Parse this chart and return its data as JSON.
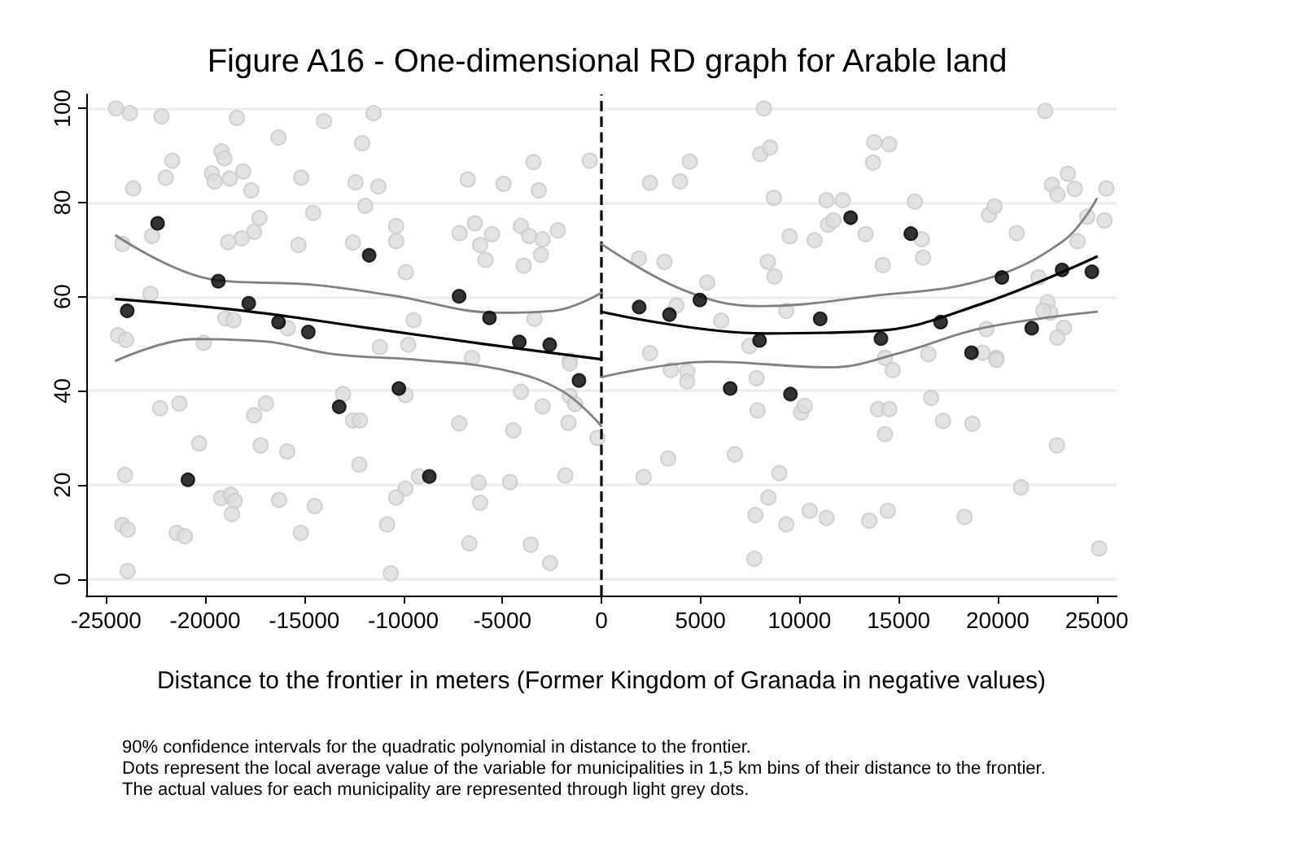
{
  "chart_data": {
    "type": "scatter",
    "title": "Figure A16 - One-dimensional RD graph for Arable land",
    "xlabel": "Distance to the frontier in meters (Former Kingdom of Granada in negative values)",
    "annotations": [
      "90% confidence intervals for the quadratic polynomial in distance to the frontier.",
      "Dots represent the local average value of the variable for municipalities in 1,5 km bins of their distance to the frontier.",
      "The actual values for each municipality are represented through light grey dots."
    ],
    "xlim": [
      -26000,
      26000
    ],
    "ylim": [
      -3.5,
      103
    ],
    "xticks": [
      -25000,
      -20000,
      -15000,
      -10000,
      -5000,
      0,
      5000,
      10000,
      15000,
      20000,
      25000
    ],
    "yticks": [
      0,
      20,
      40,
      60,
      80,
      100
    ],
    "grid": "y",
    "marker": "circle",
    "ref_lines": [
      {
        "axis": "x",
        "value": 0,
        "color": "#000000",
        "line_style": "dashed"
      }
    ],
    "series": [
      {
        "color": "#dcdcdc",
        "x": [
          -24500,
          -23800,
          -22200,
          -18400,
          -14000,
          -11500,
          -16300,
          -23630,
          -21990,
          -21660,
          -19660,
          -19170,
          -19030,
          -18760,
          -18080,
          -17670,
          -19520,
          -15150,
          -12080,
          -12410,
          -11260,
          -11920,
          -14550,
          -17260,
          -17530,
          -18160,
          -18840,
          -22680,
          -24180,
          -15290,
          -12540,
          -10360,
          -10360,
          -9870,
          -6750,
          -4940,
          -3160,
          -3430,
          -590,
          -6390,
          -7160,
          -6120,
          -5520,
          -5850,
          -4060,
          -3650,
          -2970,
          -2200,
          -3050,
          -3920,
          -22760,
          -18980,
          -18570,
          -15830,
          -9480,
          -11180,
          -9750,
          -6530,
          -3380,
          -1600,
          -24400,
          -23990,
          -20070,
          -22270,
          -21300,
          -20300,
          -24040,
          -19200,
          -18700,
          -18510,
          -18650,
          -24180,
          -23910,
          -23910,
          -21440,
          -21030,
          -17530,
          -16930,
          -17200,
          -15860,
          -16270,
          -14470,
          -15170,
          -13040,
          -12540,
          -12190,
          -12220,
          -9890,
          -9890,
          -10360,
          -10820,
          -10630,
          -9210,
          -7180,
          -6670,
          -6200,
          -6120,
          -4610,
          -4450,
          -4060,
          -2970,
          -3570,
          -2590,
          -1820,
          -1660,
          -1600,
          -1330,
          -1600,
          -200,
          8200,
          22400,
          2450,
          3970,
          4460,
          8020,
          8510,
          8700,
          13770,
          14530,
          13710,
          11360,
          12180,
          11440,
          11710,
          10760,
          9500,
          13330,
          15820,
          16170,
          16230,
          14200,
          8400,
          8730,
          9330,
          5340,
          3780,
          6050,
          1890,
          3180,
          2450,
          7470,
          14310,
          16500,
          19560,
          19840,
          20960,
          22740,
          23540,
          23010,
          23890,
          25480,
          24520,
          25390,
          24030,
          22060,
          22520,
          22660,
          22300,
          19430,
          23340,
          23010,
          19240,
          19930,
          3500,
          4330,
          4330,
          7830,
          7880,
          10080,
          10260,
          13960,
          14530,
          14700,
          14310,
          16640,
          17240,
          18720,
          19930,
          22990,
          21180,
          25120,
          2130,
          3370,
          6730,
          8980,
          8430,
          7770,
          9330,
          10510,
          11360,
          13520,
          14450,
          18330,
          7720
        ],
        "values": [
          100,
          99,
          98.3,
          98,
          97.3,
          99,
          93.8,
          83.0,
          85.3,
          88.9,
          86.2,
          90.9,
          89.4,
          85.1,
          86.6,
          82.6,
          84.5,
          85.3,
          92.6,
          84.3,
          83.4,
          79.3,
          77.8,
          76.7,
          73.8,
          72.4,
          71.6,
          72.9,
          71.2,
          71.0,
          71.5,
          75.0,
          71.8,
          65.2,
          84.9,
          84.0,
          82.6,
          88.6,
          88.9,
          75.6,
          73.5,
          71.0,
          73.3,
          67.8,
          75.0,
          72.9,
          72.2,
          74.1,
          68.9,
          66.6,
          60.6,
          55.4,
          55.0,
          53.3,
          55.0,
          49.3,
          49.8,
          47.0,
          55.3,
          46.4,
          51.8,
          50.8,
          50.2,
          36.3,
          37.3,
          28.8,
          22.1,
          17.2,
          17.9,
          16.6,
          13.8,
          11.5,
          10.5,
          1.7,
          9.8,
          9.1,
          34.8,
          37.3,
          28.4,
          27.1,
          16.8,
          15.5,
          9.8,
          39.3,
          33.7,
          33.7,
          24.3,
          39.1,
          19.2,
          17.3,
          11.6,
          1.2,
          21.8,
          33.1,
          7.6,
          20.5,
          16.2,
          20.6,
          31.6,
          39.8,
          36.7,
          7.3,
          3.4,
          22.0,
          33.2,
          38.9,
          37.2,
          45.8,
          30.0,
          100,
          99.5,
          84.2,
          84.5,
          88.7,
          90.3,
          91.7,
          81.0,
          92.8,
          92.4,
          88.5,
          80.5,
          80.5,
          75.3,
          76.2,
          72.0,
          72.8,
          73.3,
          80.2,
          72.2,
          68.3,
          66.7,
          67.4,
          64.3,
          57.0,
          63.0,
          58.1,
          54.9,
          68.1,
          67.4,
          48.0,
          49.5,
          47.0,
          47.8,
          77.4,
          79.2,
          73.5,
          83.8,
          86.1,
          81.7,
          82.9,
          83.0,
          77.0,
          76.2,
          71.8,
          64.1,
          58.8,
          56.6,
          57.0,
          53.1,
          53.4,
          51.3,
          48.1,
          47.0,
          44.4,
          44.1,
          42.0,
          42.7,
          35.8,
          35.4,
          36.8,
          36.1,
          36.1,
          44.4,
          30.8,
          38.5,
          33.6,
          33.0,
          46.6,
          28.4,
          19.5,
          6.5,
          21.7,
          25.6,
          26.5,
          22.5,
          17.3,
          13.6,
          11.6,
          14.5,
          13.0,
          12.4,
          14.5,
          13.2,
          4.3
        ]
      },
      {
        "type": "line",
        "color": "#808080",
        "marker": "none",
        "line_style": "solid",
        "x": [
          -24500,
          -19400,
          -14740,
          -10630,
          -5150,
          -2420,
          0
        ],
        "values": [
          73,
          63.5,
          62.6,
          60.3,
          56.6,
          57,
          60.8
        ]
      },
      {
        "type": "line",
        "color": "#808080",
        "marker": "none",
        "line_style": "solid",
        "x": [
          -24500,
          -20500,
          -17000,
          -13500,
          -9000,
          -5000,
          -2000,
          0
        ],
        "values": [
          46.4,
          51,
          50.5,
          47.8,
          46.5,
          44.5,
          40,
          32.5
        ]
      },
      {
        "type": "line",
        "color": "#000000",
        "marker": "none",
        "line_style": "solid",
        "x": [
          -24500,
          -18000,
          -12000,
          -6000,
          0
        ],
        "values": [
          59.5,
          57,
          53.5,
          50,
          46.7
        ]
      },
      {
        "type": "line",
        "color": "#808080",
        "marker": "none",
        "line_style": "solid",
        "x": [
          0,
          4150,
          7980,
          13730,
          19200,
          23300,
          25000
        ],
        "values": [
          71.2,
          61.4,
          58,
          60.2,
          63.5,
          71.8,
          80.8
        ]
      },
      {
        "type": "line",
        "color": "#808080",
        "marker": "none",
        "line_style": "solid",
        "x": [
          0,
          5500,
          11500,
          15100,
          19200,
          25000
        ],
        "values": [
          42.9,
          46.2,
          45,
          48.1,
          53.3,
          56.8
        ]
      },
      {
        "type": "line",
        "color": "#000000",
        "marker": "none",
        "line_style": "solid",
        "x": [
          0,
          8250,
          13730,
          19200,
          25000
        ],
        "values": [
          56.8,
          52.2,
          52.7,
          58.5,
          68.5
        ]
      },
      {
        "color": "#000000",
        "x": [
          -23932,
          -22400,
          -19334,
          -17800,
          -16297,
          -14794,
          -11724,
          -7184,
          -5650,
          -4146,
          -2611,
          -20870,
          -13235,
          -10222,
          -8686,
          -1133
        ],
        "values": [
          57.0,
          75.6,
          63.3,
          58.6,
          54.6,
          52.5,
          68.8,
          60.1,
          55.5,
          50.4,
          49.8,
          21.1,
          36.6,
          40.5,
          21.8,
          42.2
        ]
      },
      {
        "color": "#000000",
        "x": [
          1905,
          3432,
          4967,
          6500,
          7980,
          9540,
          11042,
          12577,
          14108,
          15615,
          17118,
          18678,
          20212,
          21716,
          23251,
          24753
        ],
        "values": [
          57.8,
          56.2,
          59.3,
          40.5,
          50.7,
          39.3,
          55.3,
          76.8,
          51.1,
          73.4,
          54.6,
          48.1,
          64.1,
          53.3,
          65.7,
          65.3
        ]
      }
    ]
  }
}
